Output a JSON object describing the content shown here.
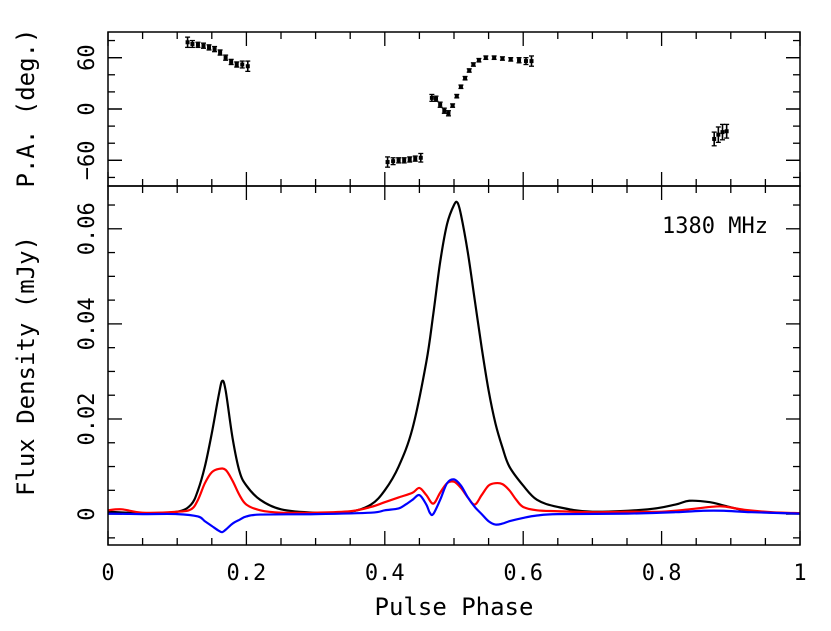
{
  "chart_data": [
    {
      "type": "scatter",
      "panel": "top",
      "ylabel": "P.A. (deg.)",
      "xlim": [
        0,
        1
      ],
      "ylim": [
        -90,
        90
      ],
      "y_ticks": [
        -60,
        0,
        60
      ],
      "y_tick_labels": [
        "−60",
        "0",
        "60"
      ],
      "errorbars": true,
      "series": [
        {
          "color": "#000000",
          "points": [
            {
              "x": 0.115,
              "y": 78,
              "err": 6
            },
            {
              "x": 0.122,
              "y": 76,
              "err": 4
            },
            {
              "x": 0.13,
              "y": 75,
              "err": 3
            },
            {
              "x": 0.138,
              "y": 74,
              "err": 3
            },
            {
              "x": 0.146,
              "y": 72,
              "err": 3
            },
            {
              "x": 0.154,
              "y": 70,
              "err": 3
            },
            {
              "x": 0.162,
              "y": 66,
              "err": 3
            },
            {
              "x": 0.17,
              "y": 60,
              "err": 3
            },
            {
              "x": 0.178,
              "y": 55,
              "err": 3
            },
            {
              "x": 0.186,
              "y": 52,
              "err": 3
            },
            {
              "x": 0.194,
              "y": 52,
              "err": 4
            },
            {
              "x": 0.202,
              "y": 50,
              "err": 6
            },
            {
              "x": 0.404,
              "y": -62,
              "err": 6
            },
            {
              "x": 0.412,
              "y": -61,
              "err": 4
            },
            {
              "x": 0.42,
              "y": -60,
              "err": 3
            },
            {
              "x": 0.428,
              "y": -60,
              "err": 3
            },
            {
              "x": 0.436,
              "y": -59,
              "err": 3
            },
            {
              "x": 0.444,
              "y": -58,
              "err": 3
            },
            {
              "x": 0.452,
              "y": -57,
              "err": 5
            },
            {
              "x": 0.468,
              "y": 13,
              "err": 4
            },
            {
              "x": 0.474,
              "y": 12,
              "err": 3
            },
            {
              "x": 0.48,
              "y": 5,
              "err": 3
            },
            {
              "x": 0.486,
              "y": -2,
              "err": 3
            },
            {
              "x": 0.492,
              "y": -5,
              "err": 3
            },
            {
              "x": 0.498,
              "y": 4,
              "err": 2
            },
            {
              "x": 0.504,
              "y": 15,
              "err": 2
            },
            {
              "x": 0.51,
              "y": 26,
              "err": 2
            },
            {
              "x": 0.516,
              "y": 36,
              "err": 2
            },
            {
              "x": 0.522,
              "y": 45,
              "err": 2
            },
            {
              "x": 0.528,
              "y": 52,
              "err": 2
            },
            {
              "x": 0.536,
              "y": 57,
              "err": 2
            },
            {
              "x": 0.546,
              "y": 60,
              "err": 2
            },
            {
              "x": 0.558,
              "y": 60,
              "err": 2
            },
            {
              "x": 0.57,
              "y": 59,
              "err": 2
            },
            {
              "x": 0.582,
              "y": 58,
              "err": 2
            },
            {
              "x": 0.594,
              "y": 57,
              "err": 3
            },
            {
              "x": 0.604,
              "y": 56,
              "err": 4
            },
            {
              "x": 0.612,
              "y": 56,
              "err": 6
            },
            {
              "x": 0.876,
              "y": -35,
              "err": 8
            },
            {
              "x": 0.882,
              "y": -30,
              "err": 9
            },
            {
              "x": 0.888,
              "y": -27,
              "err": 9
            },
            {
              "x": 0.894,
              "y": -26,
              "err": 8
            }
          ]
        }
      ]
    },
    {
      "type": "line",
      "panel": "bottom",
      "xlabel": "Pulse Phase",
      "ylabel": "Flux Density (mJy)",
      "xlim": [
        0,
        1
      ],
      "ylim": [
        -0.0065,
        0.069
      ],
      "x_ticks": [
        0,
        0.2,
        0.4,
        0.6,
        0.8,
        1
      ],
      "x_tick_labels": [
        "0",
        "0.2",
        "0.4",
        "0.6",
        "0.8",
        "1"
      ],
      "y_ticks": [
        0,
        0.02,
        0.04,
        0.06
      ],
      "y_tick_labels": [
        "0",
        "0.02",
        "0.04",
        "0.06"
      ],
      "annotation": "1380 MHz",
      "series": [
        {
          "color": "#000000",
          "points": [
            [
              0,
              0.0005
            ],
            [
              0.05,
              0.0002
            ],
            [
              0.1,
              0.0005
            ],
            [
              0.12,
              0.002
            ],
            [
              0.13,
              0.005
            ],
            [
              0.14,
              0.01
            ],
            [
              0.15,
              0.017
            ],
            [
              0.16,
              0.025
            ],
            [
              0.165,
              0.028
            ],
            [
              0.17,
              0.026
            ],
            [
              0.18,
              0.016
            ],
            [
              0.19,
              0.009
            ],
            [
              0.2,
              0.006
            ],
            [
              0.22,
              0.003
            ],
            [
              0.25,
              0.001
            ],
            [
              0.3,
              0.0003
            ],
            [
              0.35,
              0.0005
            ],
            [
              0.38,
              0.002
            ],
            [
              0.4,
              0.005
            ],
            [
              0.42,
              0.01
            ],
            [
              0.44,
              0.018
            ],
            [
              0.46,
              0.032
            ],
            [
              0.47,
              0.042
            ],
            [
              0.48,
              0.053
            ],
            [
              0.49,
              0.061
            ],
            [
              0.5,
              0.065
            ],
            [
              0.505,
              0.0655
            ],
            [
              0.51,
              0.063
            ],
            [
              0.52,
              0.055
            ],
            [
              0.53,
              0.045
            ],
            [
              0.54,
              0.035
            ],
            [
              0.55,
              0.026
            ],
            [
              0.56,
              0.019
            ],
            [
              0.57,
              0.014
            ],
            [
              0.58,
              0.01
            ],
            [
              0.6,
              0.006
            ],
            [
              0.62,
              0.003
            ],
            [
              0.65,
              0.0015
            ],
            [
              0.7,
              0.0005
            ],
            [
              0.78,
              0.001
            ],
            [
              0.82,
              0.002
            ],
            [
              0.84,
              0.0028
            ],
            [
              0.87,
              0.0025
            ],
            [
              0.89,
              0.0018
            ],
            [
              0.92,
              0.0008
            ],
            [
              0.96,
              0.0003
            ],
            [
              1.0,
              0.0002
            ]
          ]
        },
        {
          "color": "#ff0000",
          "points": [
            [
              0,
              0.0008
            ],
            [
              0.02,
              0.001
            ],
            [
              0.05,
              0.0003
            ],
            [
              0.1,
              0.0005
            ],
            [
              0.12,
              0.001
            ],
            [
              0.13,
              0.003
            ],
            [
              0.14,
              0.0065
            ],
            [
              0.15,
              0.0088
            ],
            [
              0.16,
              0.0095
            ],
            [
              0.17,
              0.0093
            ],
            [
              0.18,
              0.007
            ],
            [
              0.19,
              0.004
            ],
            [
              0.2,
              0.002
            ],
            [
              0.22,
              0.0008
            ],
            [
              0.25,
              0.0003
            ],
            [
              0.3,
              0.0003
            ],
            [
              0.35,
              0.0006
            ],
            [
              0.38,
              0.0015
            ],
            [
              0.4,
              0.0025
            ],
            [
              0.42,
              0.0035
            ],
            [
              0.44,
              0.0045
            ],
            [
              0.45,
              0.0055
            ],
            [
              0.46,
              0.004
            ],
            [
              0.47,
              0.0022
            ],
            [
              0.48,
              0.0045
            ],
            [
              0.49,
              0.0065
            ],
            [
              0.5,
              0.0068
            ],
            [
              0.51,
              0.0055
            ],
            [
              0.52,
              0.0035
            ],
            [
              0.53,
              0.002
            ],
            [
              0.54,
              0.004
            ],
            [
              0.55,
              0.006
            ],
            [
              0.56,
              0.0065
            ],
            [
              0.57,
              0.0063
            ],
            [
              0.58,
              0.005
            ],
            [
              0.59,
              0.003
            ],
            [
              0.6,
              0.0015
            ],
            [
              0.62,
              0.0008
            ],
            [
              0.65,
              0.0006
            ],
            [
              0.7,
              0.0004
            ],
            [
              0.75,
              0.0005
            ],
            [
              0.8,
              0.0005
            ],
            [
              0.84,
              0.001
            ],
            [
              0.87,
              0.0015
            ],
            [
              0.89,
              0.0016
            ],
            [
              0.92,
              0.0009
            ],
            [
              0.96,
              0.0004
            ],
            [
              1.0,
              0.0002
            ]
          ]
        },
        {
          "color": "#0000ff",
          "points": [
            [
              0,
              0.0001
            ],
            [
              0.05,
              0.0
            ],
            [
              0.1,
              0.0
            ],
            [
              0.13,
              -0.0005
            ],
            [
              0.14,
              -0.0015
            ],
            [
              0.15,
              -0.0025
            ],
            [
              0.16,
              -0.0035
            ],
            [
              0.165,
              -0.0038
            ],
            [
              0.17,
              -0.0033
            ],
            [
              0.18,
              -0.002
            ],
            [
              0.19,
              -0.0012
            ],
            [
              0.2,
              -0.0005
            ],
            [
              0.22,
              -0.0001
            ],
            [
              0.3,
              0.0
            ],
            [
              0.38,
              0.0003
            ],
            [
              0.4,
              0.0008
            ],
            [
              0.42,
              0.0012
            ],
            [
              0.43,
              0.002
            ],
            [
              0.44,
              0.003
            ],
            [
              0.45,
              0.004
            ],
            [
              0.46,
              0.002
            ],
            [
              0.465,
              0.0003
            ],
            [
              0.47,
              0.0
            ],
            [
              0.48,
              0.003
            ],
            [
              0.49,
              0.0065
            ],
            [
              0.5,
              0.0073
            ],
            [
              0.51,
              0.006
            ],
            [
              0.52,
              0.0035
            ],
            [
              0.53,
              0.0015
            ],
            [
              0.54,
              0.0
            ],
            [
              0.55,
              -0.0015
            ],
            [
              0.56,
              -0.0022
            ],
            [
              0.57,
              -0.002
            ],
            [
              0.58,
              -0.0015
            ],
            [
              0.6,
              -0.0008
            ],
            [
              0.62,
              -0.0003
            ],
            [
              0.65,
              0.0
            ],
            [
              0.75,
              0.0001
            ],
            [
              0.82,
              0.0004
            ],
            [
              0.86,
              0.0007
            ],
            [
              0.89,
              0.0007
            ],
            [
              0.93,
              0.0004
            ],
            [
              1.0,
              0.0001
            ]
          ]
        }
      ]
    }
  ]
}
